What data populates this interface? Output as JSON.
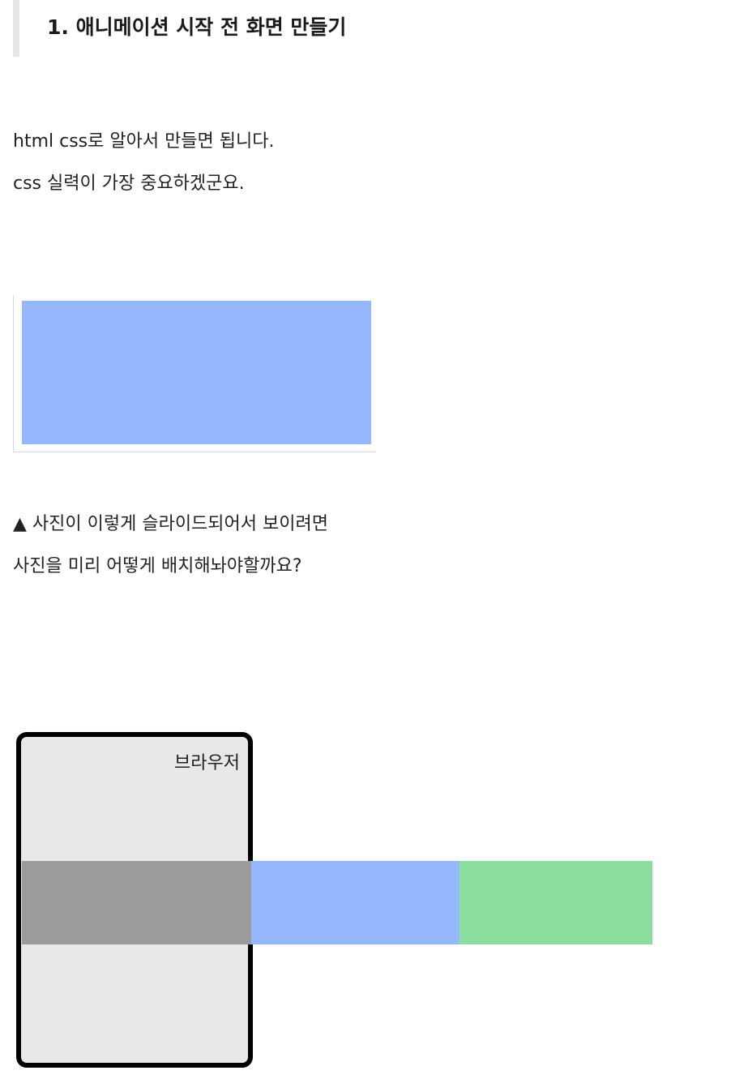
{
  "heading": {
    "title": "1. 애니메이션 시작 전 화면 만들기"
  },
  "paragraphs": {
    "p1": "html css로 알아서 만들면 됩니다.",
    "p2": "css 실력이 가장 중요하겠군요.",
    "p3": "▲ 사진이 이렇게 슬라이드되어서 보이려면",
    "p4": "사진을 미리 어떻게 배치해놔야할까요?"
  },
  "slide_preview": {
    "color": "#95b8fc"
  },
  "diagram": {
    "browser_label": "브라우저",
    "browser_bg": "#e8e8e8",
    "slides": [
      {
        "color": "#9b9b9b"
      },
      {
        "color": "#95b8fc"
      },
      {
        "color": "#8adf9e"
      }
    ]
  }
}
